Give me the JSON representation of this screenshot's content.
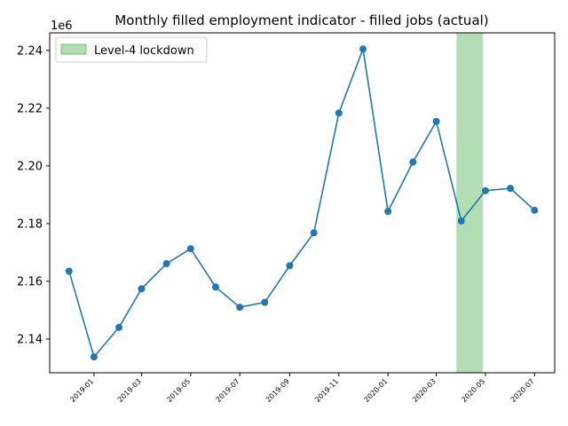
{
  "chart_data": {
    "type": "line",
    "title": "Monthly filled employment indicator - filled jobs (actual)",
    "xlabel": "",
    "ylabel": "",
    "y_offset_label": "1e6",
    "series": [
      {
        "color": "#1f77b4",
        "marker": "circle",
        "points": [
          {
            "x": "2018-12-01",
            "y": 2163500
          },
          {
            "x": "2019-01-01",
            "y": 2133800
          },
          {
            "x": "2019-02-01",
            "y": 2144000
          },
          {
            "x": "2019-03-01",
            "y": 2157400
          },
          {
            "x": "2019-04-01",
            "y": 2166100
          },
          {
            "x": "2019-05-01",
            "y": 2171300
          },
          {
            "x": "2019-06-01",
            "y": 2158000
          },
          {
            "x": "2019-07-01",
            "y": 2151000
          },
          {
            "x": "2019-08-01",
            "y": 2152700
          },
          {
            "x": "2019-09-01",
            "y": 2165400
          },
          {
            "x": "2019-10-01",
            "y": 2176800
          },
          {
            "x": "2019-11-01",
            "y": 2218300
          },
          {
            "x": "2019-12-01",
            "y": 2240500
          },
          {
            "x": "2020-01-01",
            "y": 2184200
          },
          {
            "x": "2020-02-01",
            "y": 2201300
          },
          {
            "x": "2020-03-01",
            "y": 2215400
          },
          {
            "x": "2020-04-01",
            "y": 2180900
          },
          {
            "x": "2020-05-01",
            "y": 2191400
          },
          {
            "x": "2020-06-01",
            "y": 2192200
          },
          {
            "x": "2020-07-01",
            "y": 2184600
          }
        ]
      }
    ],
    "shaded_regions": [
      {
        "label": "Level-4 lockdown",
        "x_start": "2020-03-26",
        "x_end": "2020-04-28",
        "color": "#2ca02c",
        "opacity": 0.36
      }
    ],
    "legend_position": "top-left",
    "x_tick_labels": [
      "2019-01",
      "2019-03",
      "2019-05",
      "2019-07",
      "2019-09",
      "2019-11",
      "2020-01",
      "2020-03",
      "2020-05",
      "2020-07"
    ],
    "y_tick_values": [
      2140000,
      2160000,
      2180000,
      2200000,
      2220000,
      2240000
    ],
    "y_tick_labels": [
      "2.14",
      "2.16",
      "2.18",
      "2.20",
      "2.22",
      "2.24"
    ],
    "xlim": [
      "2018-11-07",
      "2020-07-26"
    ],
    "ylim": [
      2128300,
      2246100
    ],
    "grid": false
  }
}
